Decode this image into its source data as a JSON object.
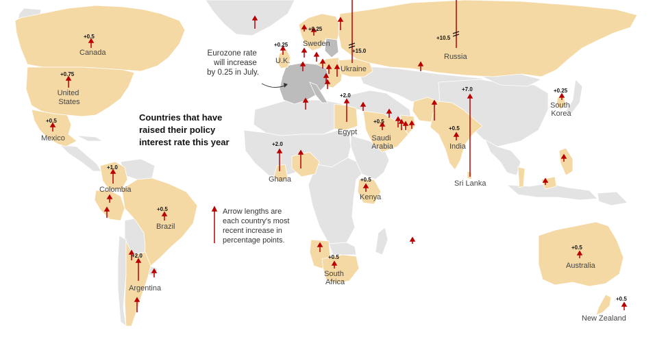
{
  "title_lines": [
    "Countries that have",
    "raised their policy",
    "interest rate this year"
  ],
  "eurozone_note_lines": [
    "Eurozone rate",
    "will increase",
    "by 0.25 in July."
  ],
  "legend_lines": [
    "Arrow lengths are",
    "each country's most",
    "recent increase in",
    "percentage points."
  ],
  "colors": {
    "raised": "#f5d9a4",
    "not_raised": "#e3e3e3",
    "eurozone": "#bcbcbc",
    "arrow": "#b80000",
    "ocean": "#ffffff"
  },
  "countries": [
    {
      "name": "Canada",
      "value_label": "+0.5"
    },
    {
      "name": "United States",
      "label_lines": [
        "United",
        "States"
      ],
      "value_label": "+0.75"
    },
    {
      "name": "Mexico",
      "value_label": "+0.5"
    },
    {
      "name": "Colombia",
      "value_label": "+1.0"
    },
    {
      "name": "Brazil",
      "value_label": "+0.5"
    },
    {
      "name": "Argentina",
      "value_label": "+2.0"
    },
    {
      "name": "U.K.",
      "value_label": "+0.25"
    },
    {
      "name": "Sweden",
      "value_label": "+0.25"
    },
    {
      "name": "Ukraine",
      "value_label": "+15.0"
    },
    {
      "name": "Russia",
      "value_label": "+10.5"
    },
    {
      "name": "Egypt",
      "value_label": "+2.0"
    },
    {
      "name": "Saudi Arabia",
      "label_lines": [
        "Saudi",
        "Arabia"
      ],
      "value_label": "+0.5"
    },
    {
      "name": "India",
      "value_label": "+0.5"
    },
    {
      "name": "Sri Lanka",
      "value_label": "+7.0"
    },
    {
      "name": "South Korea",
      "label_lines": [
        "South",
        "Korea"
      ],
      "value_label": "+0.25"
    },
    {
      "name": "Ghana",
      "value_label": "+2.0"
    },
    {
      "name": "Kenya",
      "value_label": "+0.5"
    },
    {
      "name": "South Africa",
      "label_lines": [
        "South",
        "Africa"
      ],
      "value_label": "+0.5"
    },
    {
      "name": "Australia",
      "value_label": "+0.5"
    },
    {
      "name": "New Zealand",
      "value_label": "+0.5"
    }
  ]
}
